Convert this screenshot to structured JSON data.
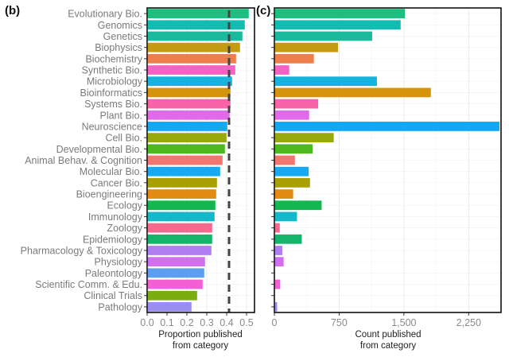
{
  "chart_data": [
    {
      "panel": "(b)",
      "type": "bar",
      "orientation": "horizontal",
      "title": "",
      "xlabel": "Proportion published\nfrom category",
      "ylabel": "",
      "xlim": [
        0,
        0.54
      ],
      "xticks": [
        0.0,
        0.1,
        0.2,
        0.3,
        0.4,
        0.5
      ],
      "xtick_labels": [
        "0.0",
        "0.1",
        "0.2",
        "0.3",
        "0.4",
        "0.5"
      ],
      "grid": true,
      "reference_line": {
        "value": 0.412,
        "style": "dashed"
      },
      "categories": [
        "Evolutionary Bio.",
        "Genomics",
        "Genetics",
        "Biophysics",
        "Biochemistry",
        "Synthetic Bio.",
        "Microbiology",
        "Bioinformatics",
        "Systems Bio.",
        "Plant Bio.",
        "Neuroscience",
        "Cell Bio.",
        "Developmental Bio.",
        "Animal Behav. & Cognition",
        "Molecular Bio.",
        "Cancer Bio.",
        "Bioengineering",
        "Ecology",
        "Immunology",
        "Zoology",
        "Epidemiology",
        "Pharmacology & Toxicology",
        "Physiology",
        "Paleontology",
        "Scientific Comm. & Edu.",
        "Clinical Trials",
        "Pathology"
      ],
      "values": [
        0.508,
        0.488,
        0.476,
        0.464,
        0.444,
        0.44,
        0.424,
        0.416,
        0.416,
        0.412,
        0.4,
        0.396,
        0.388,
        0.376,
        0.364,
        0.348,
        0.344,
        0.34,
        0.336,
        0.324,
        0.324,
        0.32,
        0.288,
        0.284,
        0.276,
        0.248,
        0.22
      ]
    },
    {
      "panel": "(c)",
      "type": "bar",
      "orientation": "horizontal",
      "title": "",
      "xlabel": "Count published\nfrom category",
      "ylabel": "",
      "xlim": [
        0,
        2625
      ],
      "xticks": [
        0,
        750,
        1500,
        2250
      ],
      "xtick_labels": [
        "0",
        "750",
        "1,500",
        "2,250"
      ],
      "grid": true,
      "categories": [
        "Evolutionary Bio.",
        "Genomics",
        "Genetics",
        "Biophysics",
        "Biochemistry",
        "Synthetic Bio.",
        "Microbiology",
        "Bioinformatics",
        "Systems Bio.",
        "Plant Bio.",
        "Neuroscience",
        "Cell Bio.",
        "Developmental Bio.",
        "Animal Behav. & Cognition",
        "Molecular Bio.",
        "Cancer Bio.",
        "Bioengineering",
        "Ecology",
        "Immunology",
        "Zoology",
        "Epidemiology",
        "Pharmacology & Toxicology",
        "Physiology",
        "Paleontology",
        "Scientific Comm. & Edu.",
        "Clinical Trials",
        "Pathology"
      ],
      "values": [
        1505,
        1455,
        1125,
        730,
        450,
        165,
        1180,
        1805,
        500,
        395,
        2600,
        680,
        435,
        230,
        390,
        405,
        210,
        540,
        255,
        55,
        310,
        85,
        100,
        0,
        60,
        0,
        25
      ]
    }
  ],
  "colors": [
    "#1dbf7f",
    "#12bcb0",
    "#1bba9c",
    "#c49a12",
    "#ed7f4f",
    "#f562c3",
    "#17b3de",
    "#d4940c",
    "#f763a6",
    "#e06bea",
    "#12a8f5",
    "#97a90d",
    "#4db81d",
    "#f27570",
    "#17aaf0",
    "#a8a006",
    "#e38b10",
    "#12b752",
    "#14b8c8",
    "#f5698e",
    "#14b56a",
    "#b07ef0",
    "#d26eef",
    "#5c9ef0",
    "#f35fd5",
    "#7aad10",
    "#9a8ef0"
  ],
  "panel_labels": {
    "b": "(b)",
    "c": "(c)"
  },
  "axis_titles": {
    "b": [
      "Proportion published",
      "from category"
    ],
    "c": [
      "Count published",
      "from category"
    ]
  }
}
